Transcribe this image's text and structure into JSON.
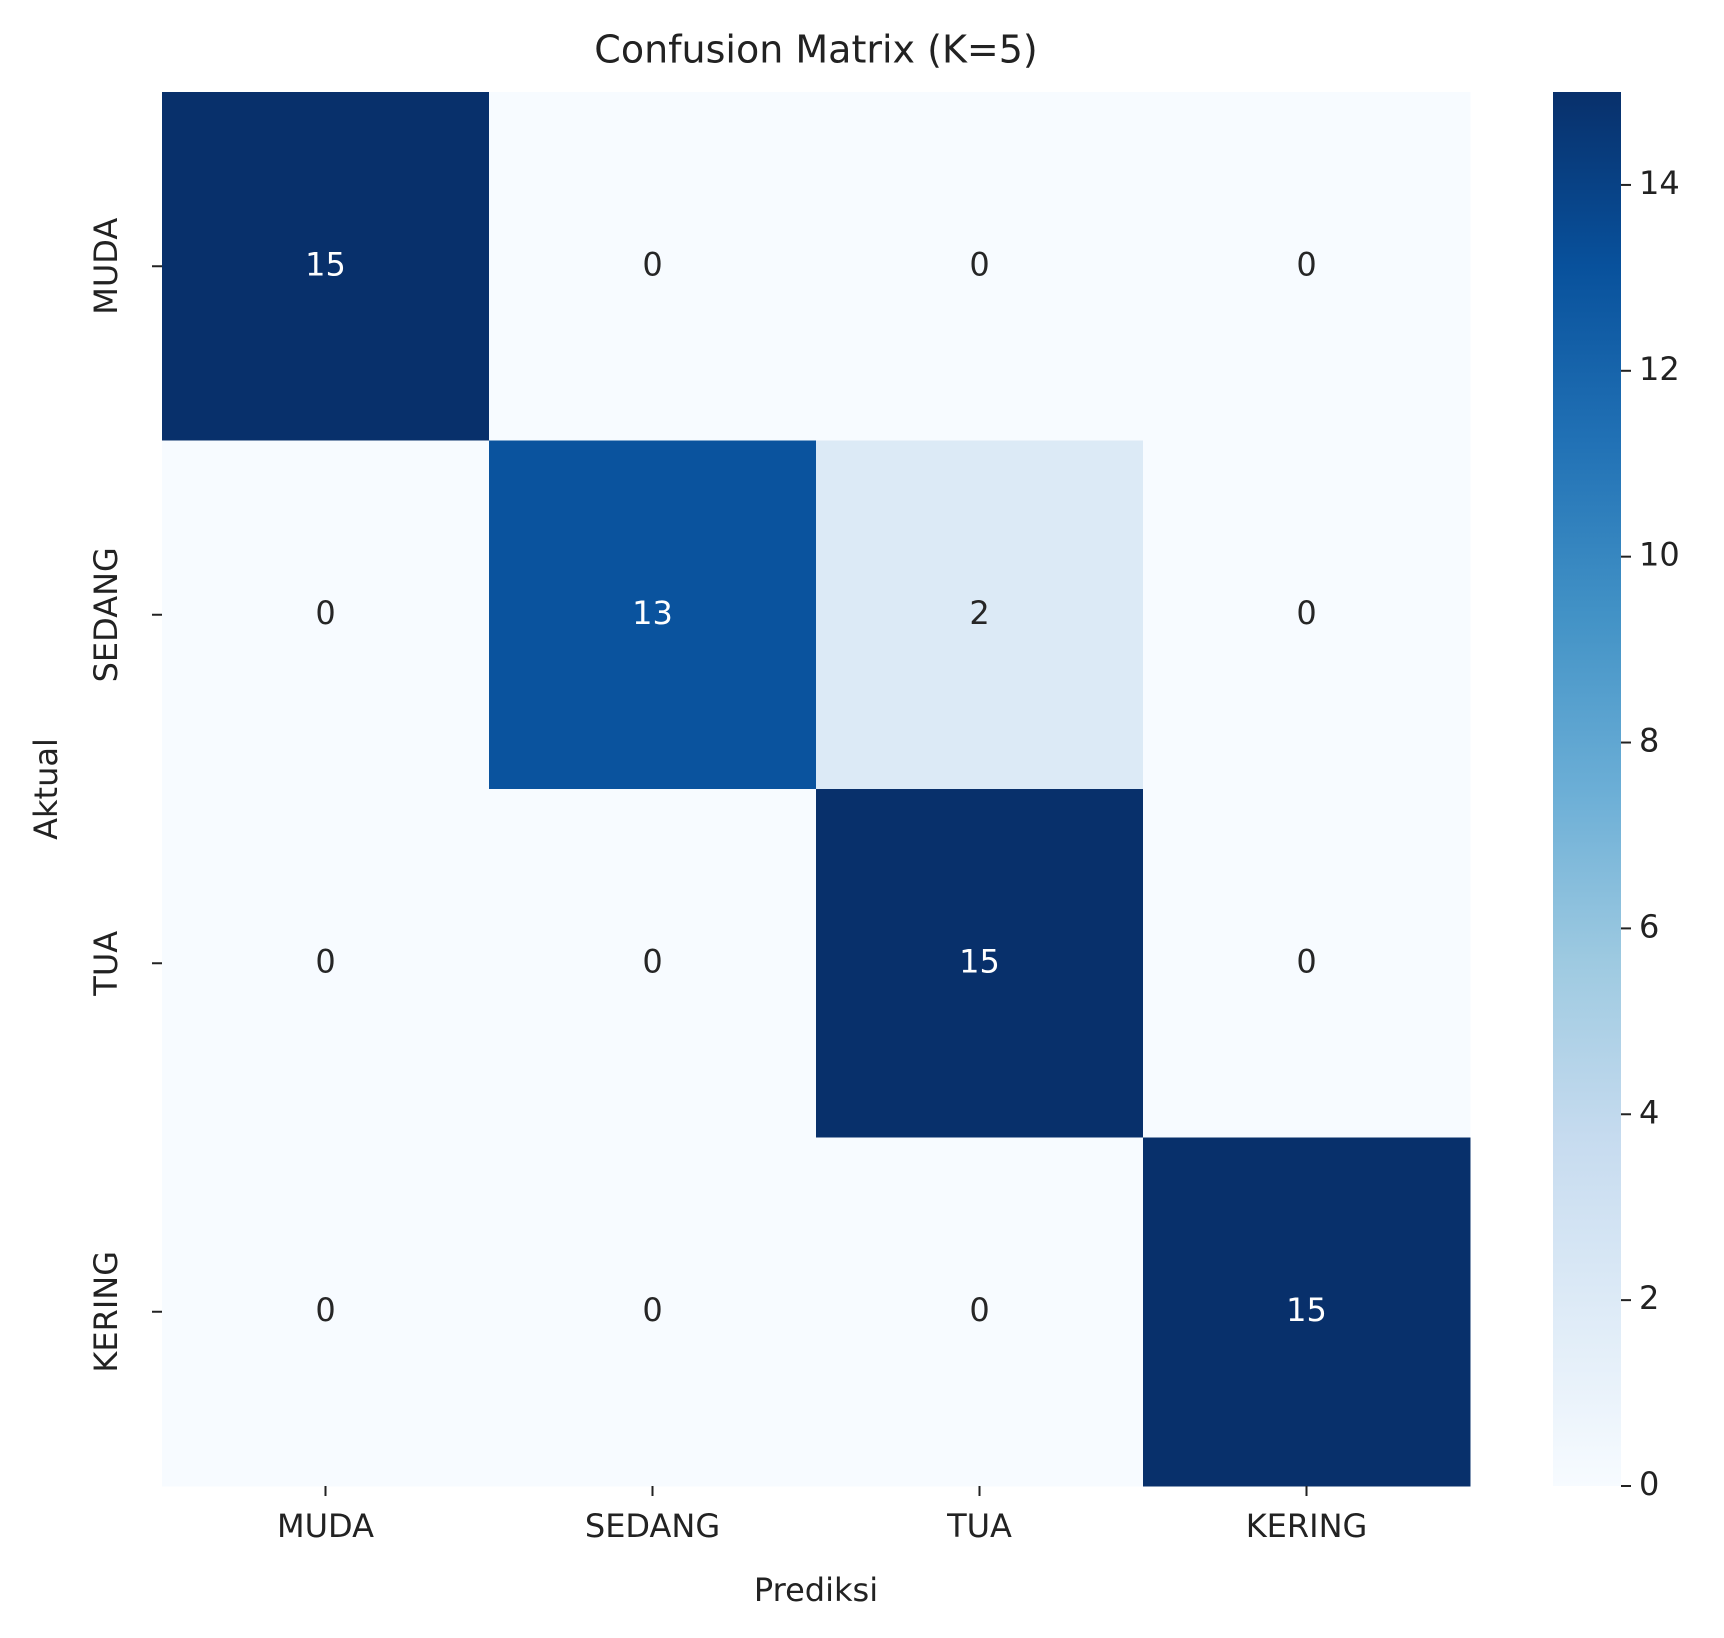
{
  "chart_data": {
    "type": "heatmap",
    "title": "Confusion Matrix (K=5)",
    "xlabel": "Prediksi",
    "ylabel": "Aktual",
    "x_categories": [
      "MUDA",
      "SEDANG",
      "TUA",
      "KERING"
    ],
    "y_categories": [
      "MUDA",
      "SEDANG",
      "TUA",
      "KERING"
    ],
    "values": [
      [
        15,
        0,
        0,
        0
      ],
      [
        0,
        13,
        2,
        0
      ],
      [
        0,
        0,
        15,
        0
      ],
      [
        0,
        0,
        0,
        15
      ]
    ],
    "colormap": "Blues",
    "clim": [
      0,
      15
    ],
    "cticks": [
      0,
      2,
      4,
      6,
      8,
      10,
      12,
      14
    ]
  }
}
